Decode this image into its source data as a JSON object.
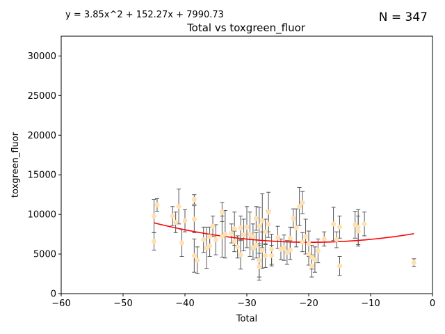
{
  "equation": "y = 3.85x^2 + 152.27x + 7990.73",
  "n_label": "N = 347",
  "colors": {
    "points": "#ffe0b0",
    "fit": "#ff0000",
    "errorbars": "#555555",
    "axes": "#000000"
  },
  "chart_data": {
    "type": "scatter",
    "title": "Total vs toxgreen_fluor",
    "xlabel": "Total",
    "ylabel": "toxgreen_fluor",
    "xlim": [
      -60,
      0
    ],
    "ylim": [
      0,
      32500
    ],
    "xticks": [
      -60,
      -50,
      -40,
      -30,
      -20,
      -10,
      0
    ],
    "yticks": [
      0,
      5000,
      10000,
      15000,
      20000,
      25000,
      30000
    ],
    "grid": false,
    "fit": {
      "type": "quadratic",
      "coefficients": [
        3.85,
        152.27,
        7990.73
      ],
      "x_range": [
        -45,
        -3
      ]
    },
    "points": [
      {
        "x": -45,
        "y": 9800,
        "err": 2100
      },
      {
        "x": -45,
        "y": 6600,
        "err": 1100
      },
      {
        "x": -44.5,
        "y": 11200,
        "err": 800
      },
      {
        "x": -42,
        "y": 9800,
        "err": 1200
      },
      {
        "x": -41.5,
        "y": 9000,
        "err": 1300
      },
      {
        "x": -41,
        "y": 11000,
        "err": 2200
      },
      {
        "x": -40.5,
        "y": 6400,
        "err": 1700
      },
      {
        "x": -40,
        "y": 9200,
        "err": 1400
      },
      {
        "x": -38.5,
        "y": 11900,
        "err": 600
      },
      {
        "x": -38.5,
        "y": 9400,
        "err": 1700
      },
      {
        "x": -38.5,
        "y": 4800,
        "err": 2100
      },
      {
        "x": -38,
        "y": 4200,
        "err": 1700
      },
      {
        "x": -37,
        "y": 6800,
        "err": 1600
      },
      {
        "x": -36.5,
        "y": 5800,
        "err": 2600
      },
      {
        "x": -36,
        "y": 7200,
        "err": 1200
      },
      {
        "x": -36,
        "y": 6000,
        "err": 1300
      },
      {
        "x": -35.5,
        "y": 8500,
        "err": 1300
      },
      {
        "x": -35,
        "y": 6800,
        "err": 1900
      },
      {
        "x": -34,
        "y": 10300,
        "err": 1200
      },
      {
        "x": -34,
        "y": 7200,
        "err": 2600
      },
      {
        "x": -33.5,
        "y": 7500,
        "err": 3000
      },
      {
        "x": -32.5,
        "y": 7600,
        "err": 1200
      },
      {
        "x": -32,
        "y": 6600,
        "err": 1300
      },
      {
        "x": -32,
        "y": 8200,
        "err": 2100
      },
      {
        "x": -31.5,
        "y": 5900,
        "err": 1400
      },
      {
        "x": -31,
        "y": 8300,
        "err": 1500
      },
      {
        "x": -31,
        "y": 4900,
        "err": 1800
      },
      {
        "x": -30.5,
        "y": 7400,
        "err": 2000
      },
      {
        "x": -30,
        "y": 8400,
        "err": 2600
      },
      {
        "x": -29.5,
        "y": 7500,
        "err": 2800
      },
      {
        "x": -29,
        "y": 7200,
        "err": 1600
      },
      {
        "x": -29,
        "y": 5800,
        "err": 1500
      },
      {
        "x": -28.5,
        "y": 9500,
        "err": 1500
      },
      {
        "x": -28.5,
        "y": 6100,
        "err": 1600
      },
      {
        "x": -28,
        "y": 4200,
        "err": 2100
      },
      {
        "x": -28,
        "y": 3400,
        "err": 1700
      },
      {
        "x": -28,
        "y": 8500,
        "err": 2400
      },
      {
        "x": -27.5,
        "y": 5500,
        "err": 2300
      },
      {
        "x": -27.5,
        "y": 9200,
        "err": 3400
      },
      {
        "x": -27,
        "y": 7800,
        "err": 1600
      },
      {
        "x": -27,
        "y": 4800,
        "err": 1500
      },
      {
        "x": -26.5,
        "y": 10300,
        "err": 2500
      },
      {
        "x": -26.5,
        "y": 8800,
        "err": 1700
      },
      {
        "x": -26,
        "y": 5600,
        "err": 1900
      },
      {
        "x": -26,
        "y": 4800,
        "err": 1300
      },
      {
        "x": -25,
        "y": 7100,
        "err": 1400
      },
      {
        "x": -24.5,
        "y": 5600,
        "err": 1300
      },
      {
        "x": -24,
        "y": 5800,
        "err": 1600
      },
      {
        "x": -23.5,
        "y": 5200,
        "err": 1500
      },
      {
        "x": -23,
        "y": 7000,
        "err": 1400
      },
      {
        "x": -23,
        "y": 5500,
        "err": 1200
      },
      {
        "x": -22.5,
        "y": 9500,
        "err": 1200
      },
      {
        "x": -22,
        "y": 8300,
        "err": 2400
      },
      {
        "x": -21.5,
        "y": 11000,
        "err": 2400
      },
      {
        "x": -21,
        "y": 11500,
        "err": 1400
      },
      {
        "x": -21,
        "y": 6500,
        "err": 1200
      },
      {
        "x": -20.5,
        "y": 7200,
        "err": 2200
      },
      {
        "x": -20,
        "y": 6300,
        "err": 1600
      },
      {
        "x": -20,
        "y": 5000,
        "err": 1400
      },
      {
        "x": -19.5,
        "y": 4600,
        "err": 1500
      },
      {
        "x": -19.5,
        "y": 3500,
        "err": 1400
      },
      {
        "x": -19,
        "y": 4300,
        "err": 1600
      },
      {
        "x": -18.5,
        "y": 5400,
        "err": 1500
      },
      {
        "x": -17.5,
        "y": 6900,
        "err": 900
      },
      {
        "x": -16,
        "y": 8800,
        "err": 2100
      },
      {
        "x": -15.5,
        "y": 6800,
        "err": 1000
      },
      {
        "x": -15,
        "y": 8400,
        "err": 1400
      },
      {
        "x": -15,
        "y": 3500,
        "err": 1200
      },
      {
        "x": -12.5,
        "y": 8700,
        "err": 1700
      },
      {
        "x": -12,
        "y": 8400,
        "err": 2200
      },
      {
        "x": -12,
        "y": 7900,
        "err": 1900
      },
      {
        "x": -11,
        "y": 8800,
        "err": 1500
      },
      {
        "x": -3,
        "y": 3900,
        "err": 500
      }
    ]
  }
}
